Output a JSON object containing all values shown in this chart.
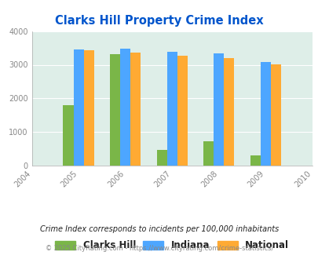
{
  "title": "Clarks Hill Property Crime Index",
  "years": [
    2004,
    2005,
    2006,
    2007,
    2008,
    2009,
    2010
  ],
  "data_years": [
    2005,
    2006,
    2007,
    2008,
    2009
  ],
  "clarks_hill": [
    1800,
    3320,
    480,
    720,
    310
  ],
  "indiana": [
    3450,
    3480,
    3390,
    3340,
    3090
  ],
  "national": [
    3420,
    3350,
    3270,
    3190,
    3020
  ],
  "clarks_hill_color": "#7ab648",
  "indiana_color": "#4da6ff",
  "national_color": "#ffaa33",
  "bg_color": "#deeee8",
  "title_color": "#0055cc",
  "ylim": [
    0,
    4000
  ],
  "bar_width": 0.22,
  "legend_labels": [
    "Clarks Hill",
    "Indiana",
    "National"
  ],
  "footnote1": "Crime Index corresponds to incidents per 100,000 inhabitants",
  "footnote2": "© 2025 CityRating.com - https://www.cityrating.com/crime-statistics/",
  "footnote1_color": "#222222",
  "footnote2_color": "#888888",
  "tick_color": "#888888",
  "grid_color": "#ffffff"
}
